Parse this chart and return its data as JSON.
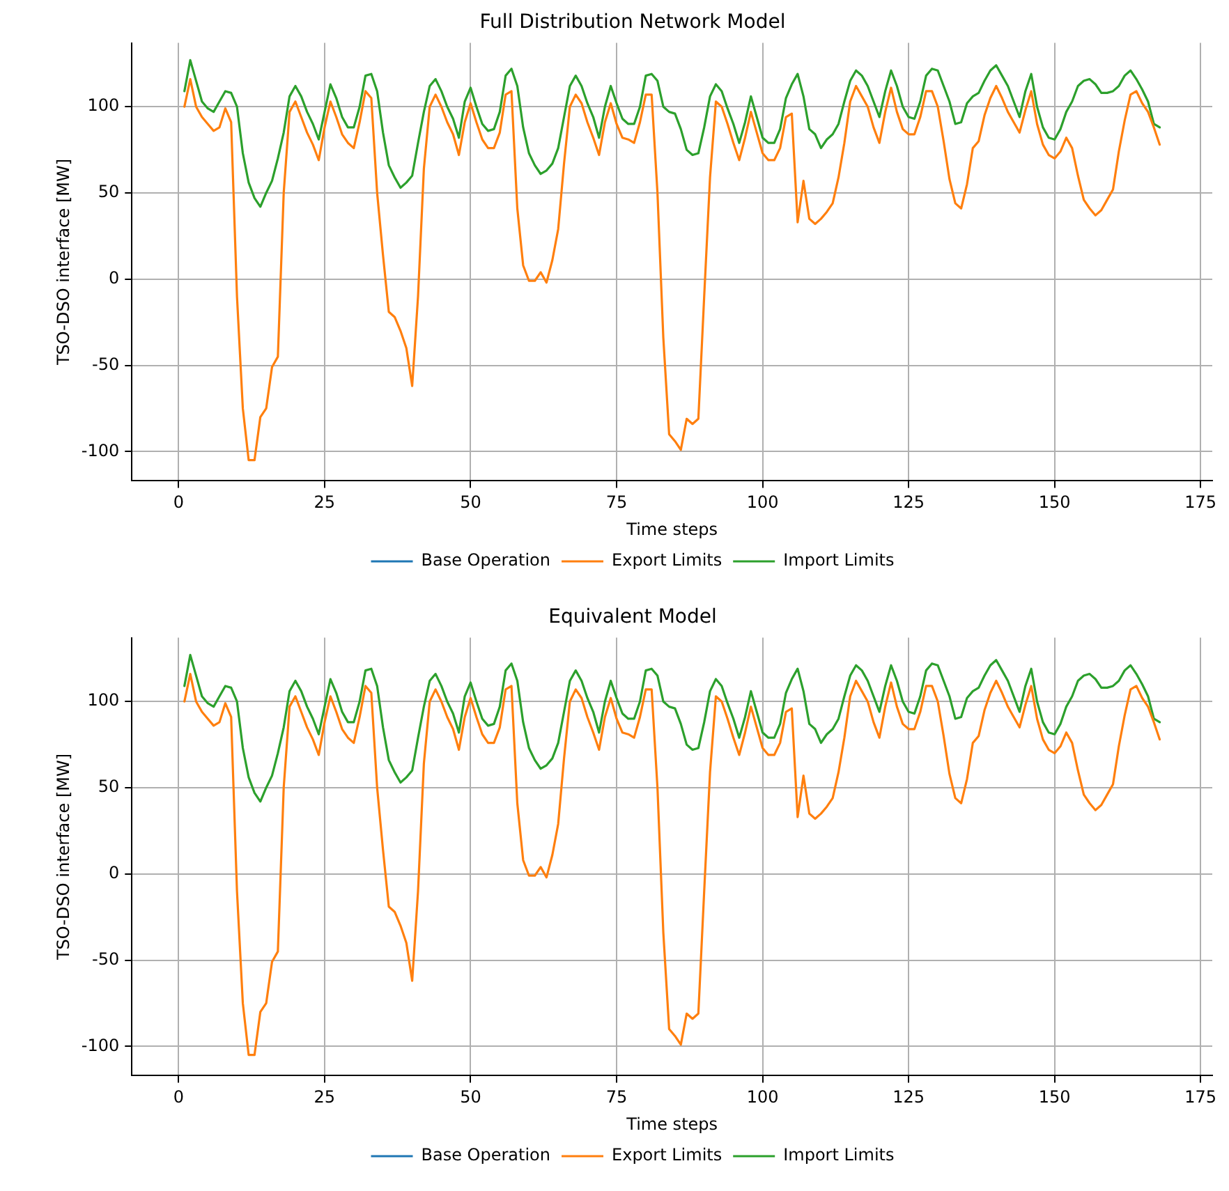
{
  "chart_data": [
    {
      "type": "line",
      "title": "Full Distribution Network Model",
      "xlabel": "Time steps",
      "ylabel": "TSO-DSO interface [MW]",
      "x": [
        1,
        2,
        3,
        4,
        5,
        6,
        7,
        8,
        9,
        10,
        11,
        12,
        13,
        14,
        15,
        16,
        17,
        18,
        19,
        20,
        21,
        22,
        23,
        24,
        25,
        26,
        27,
        28,
        29,
        30,
        31,
        32,
        33,
        34,
        35,
        36,
        37,
        38,
        39,
        40,
        41,
        42,
        43,
        44,
        45,
        46,
        47,
        48,
        49,
        50,
        51,
        52,
        53,
        54,
        55,
        56,
        57,
        58,
        59,
        60,
        61,
        62,
        63,
        64,
        65,
        66,
        67,
        68,
        69,
        70,
        71,
        72,
        73,
        74,
        75,
        76,
        77,
        78,
        79,
        80,
        81,
        82,
        83,
        84,
        85,
        86,
        87,
        88,
        89,
        90,
        91,
        92,
        93,
        94,
        95,
        96,
        97,
        98,
        99,
        100,
        101,
        102,
        103,
        104,
        105,
        106,
        107,
        108,
        109,
        110,
        111,
        112,
        113,
        114,
        115,
        116,
        117,
        118,
        119,
        120,
        121,
        122,
        123,
        124,
        125,
        126,
        127,
        128,
        129,
        130,
        131,
        132,
        133,
        134,
        135,
        136,
        137,
        138,
        139,
        140,
        141,
        142,
        143,
        144,
        145,
        146,
        147,
        148,
        149,
        150,
        151,
        152,
        153,
        154,
        155,
        156,
        157,
        158,
        159,
        160,
        161,
        162,
        163,
        164,
        165,
        166,
        167,
        168
      ],
      "series": [
        {
          "name": "Base Operation",
          "color": "#1f77b4",
          "values": [
            null,
            null,
            null,
            null,
            null,
            null,
            null,
            null,
            null,
            null,
            null,
            null,
            null,
            null,
            null,
            null,
            null,
            null,
            null,
            null,
            null,
            null,
            null,
            null,
            null,
            null,
            null,
            null,
            null,
            null,
            null,
            null,
            null,
            null,
            null,
            null,
            null,
            null,
            null,
            null,
            null,
            null,
            null,
            null,
            null,
            null,
            null,
            null,
            null,
            null,
            null,
            null,
            null,
            null,
            null,
            null,
            null,
            null,
            null,
            null,
            null,
            null,
            null,
            null,
            null,
            null,
            null,
            null,
            null,
            null,
            null,
            null,
            null,
            null,
            null,
            null,
            null,
            null,
            null,
            null,
            null,
            null,
            null,
            null,
            null,
            null,
            null,
            null,
            null,
            null,
            null,
            null,
            null,
            null,
            null,
            null,
            null,
            null,
            null,
            null,
            null,
            null,
            null,
            null,
            null,
            null,
            null,
            null,
            null,
            null,
            null,
            null,
            null,
            null,
            null,
            null,
            null,
            null,
            null,
            null,
            null,
            null,
            null,
            null,
            null,
            null,
            null,
            null,
            null,
            null,
            null,
            null,
            null,
            null,
            null,
            null,
            null,
            null,
            null,
            null,
            null,
            null,
            null,
            null,
            null,
            null,
            null,
            null,
            null,
            null,
            null,
            null,
            null,
            null,
            null,
            null,
            null,
            null,
            null,
            null,
            null,
            null,
            null,
            null,
            null,
            null,
            null,
            null
          ]
        },
        {
          "name": "Export Limits",
          "color": "#ff7f0e",
          "values": [
            100,
            116,
            100,
            94,
            90,
            86,
            88,
            99,
            91,
            -10,
            -75,
            -105,
            -105,
            -80,
            -75,
            -51,
            -45,
            50,
            97,
            103,
            94,
            85,
            78,
            69,
            88,
            103,
            94,
            84,
            79,
            76,
            91,
            109,
            105,
            50,
            14,
            -19,
            -22,
            -30,
            -40,
            -62,
            -10,
            64,
            100,
            107,
            100,
            91,
            84,
            72,
            91,
            102,
            91,
            81,
            76,
            76,
            85,
            107,
            109,
            41,
            8,
            -1,
            -1,
            4,
            -2,
            11,
            29,
            67,
            100,
            107,
            102,
            91,
            82,
            72,
            91,
            102,
            90,
            82,
            81,
            79,
            91,
            107,
            107,
            50,
            -34,
            -90,
            -94,
            -99,
            -81,
            -84,
            -81,
            -10,
            59,
            103,
            100,
            90,
            79,
            69,
            82,
            97,
            85,
            73,
            69,
            69,
            76,
            94,
            96,
            33,
            57,
            35,
            32,
            35,
            39,
            44,
            59,
            79,
            103,
            112,
            106,
            100,
            88,
            79,
            97,
            111,
            97,
            87,
            84,
            84,
            94,
            109,
            109,
            100,
            80,
            58,
            44,
            41,
            55,
            76,
            80,
            95,
            105,
            112,
            105,
            97,
            91,
            85,
            98,
            109,
            90,
            78,
            72,
            70,
            74,
            82,
            76,
            60,
            46,
            41,
            37,
            40,
            46,
            52,
            74,
            92,
            107,
            109,
            102,
            97,
            88,
            78
          ]
        },
        {
          "name": "Import Limits",
          "color": "#2ca02c",
          "values": [
            109,
            127,
            115,
            103,
            99,
            97,
            103,
            109,
            108,
            100,
            73,
            56,
            47,
            42,
            50,
            57,
            70,
            85,
            106,
            112,
            106,
            97,
            90,
            81,
            97,
            113,
            105,
            94,
            88,
            88,
            100,
            118,
            119,
            109,
            85,
            66,
            59,
            53,
            56,
            60,
            79,
            97,
            112,
            116,
            109,
            100,
            93,
            82,
            103,
            111,
            100,
            90,
            86,
            87,
            97,
            118,
            122,
            112,
            88,
            73,
            66,
            61,
            63,
            67,
            76,
            94,
            112,
            118,
            112,
            102,
            94,
            82,
            100,
            112,
            102,
            93,
            90,
            90,
            100,
            118,
            119,
            115,
            100,
            97,
            96,
            87,
            75,
            72,
            73,
            88,
            106,
            113,
            109,
            99,
            90,
            79,
            91,
            106,
            94,
            82,
            79,
            79,
            87,
            105,
            113,
            119,
            106,
            87,
            84,
            76,
            81,
            84,
            90,
            103,
            115,
            121,
            118,
            112,
            103,
            94,
            109,
            121,
            112,
            100,
            94,
            93,
            103,
            118,
            122,
            121,
            112,
            103,
            90,
            91,
            102,
            106,
            108,
            115,
            121,
            124,
            118,
            112,
            103,
            94,
            109,
            119,
            100,
            88,
            82,
            81,
            87,
            97,
            103,
            112,
            115,
            116,
            113,
            108,
            108,
            109,
            112,
            118,
            121,
            116,
            110,
            103,
            90,
            88
          ]
        }
      ],
      "xlim": [
        -8,
        177
      ],
      "ylim": [
        -117,
        137
      ],
      "xticks": [
        0,
        25,
        50,
        75,
        100,
        125,
        150,
        175
      ],
      "yticks": [
        -100,
        -50,
        0,
        50,
        100
      ],
      "grid": true,
      "legend": "bottom",
      "line_style": "solid",
      "marker": "none"
    },
    {
      "type": "line",
      "title": "Equivalent Model",
      "xlabel": "Time steps",
      "ylabel": "TSO-DSO interface [MW]",
      "x": [
        1,
        2,
        3,
        4,
        5,
        6,
        7,
        8,
        9,
        10,
        11,
        12,
        13,
        14,
        15,
        16,
        17,
        18,
        19,
        20,
        21,
        22,
        23,
        24,
        25,
        26,
        27,
        28,
        29,
        30,
        31,
        32,
        33,
        34,
        35,
        36,
        37,
        38,
        39,
        40,
        41,
        42,
        43,
        44,
        45,
        46,
        47,
        48,
        49,
        50,
        51,
        52,
        53,
        54,
        55,
        56,
        57,
        58,
        59,
        60,
        61,
        62,
        63,
        64,
        65,
        66,
        67,
        68,
        69,
        70,
        71,
        72,
        73,
        74,
        75,
        76,
        77,
        78,
        79,
        80,
        81,
        82,
        83,
        84,
        85,
        86,
        87,
        88,
        89,
        90,
        91,
        92,
        93,
        94,
        95,
        96,
        97,
        98,
        99,
        100,
        101,
        102,
        103,
        104,
        105,
        106,
        107,
        108,
        109,
        110,
        111,
        112,
        113,
        114,
        115,
        116,
        117,
        118,
        119,
        120,
        121,
        122,
        123,
        124,
        125,
        126,
        127,
        128,
        129,
        130,
        131,
        132,
        133,
        134,
        135,
        136,
        137,
        138,
        139,
        140,
        141,
        142,
        143,
        144,
        145,
        146,
        147,
        148,
        149,
        150,
        151,
        152,
        153,
        154,
        155,
        156,
        157,
        158,
        159,
        160,
        161,
        162,
        163,
        164,
        165,
        166,
        167,
        168
      ],
      "series": [
        {
          "name": "Base Operation",
          "color": "#1f77b4",
          "values": [
            null,
            null,
            null,
            null,
            null,
            null,
            null,
            null,
            null,
            null,
            null,
            null,
            null,
            null,
            null,
            null,
            null,
            null,
            null,
            null,
            null,
            null,
            null,
            null,
            null,
            null,
            null,
            null,
            null,
            null,
            null,
            null,
            null,
            null,
            null,
            null,
            null,
            null,
            null,
            null,
            null,
            null,
            null,
            null,
            null,
            null,
            null,
            null,
            null,
            null,
            null,
            null,
            null,
            null,
            null,
            null,
            null,
            null,
            null,
            null,
            null,
            null,
            null,
            null,
            null,
            null,
            null,
            null,
            null,
            null,
            null,
            null,
            null,
            null,
            null,
            null,
            null,
            null,
            null,
            null,
            null,
            null,
            null,
            null,
            null,
            null,
            null,
            null,
            null,
            null,
            null,
            null,
            null,
            null,
            null,
            null,
            null,
            null,
            null,
            null,
            null,
            null,
            null,
            null,
            null,
            null,
            null,
            null,
            null,
            null,
            null,
            null,
            null,
            null,
            null,
            null,
            null,
            null,
            null,
            null,
            null,
            null,
            null,
            null,
            null,
            null,
            null,
            null,
            null,
            null,
            null,
            null,
            null,
            null,
            null,
            null,
            null,
            null,
            null,
            null,
            null,
            null,
            null,
            null,
            null,
            null,
            null,
            null,
            null,
            null,
            null,
            null,
            null,
            null,
            null,
            null,
            null,
            null,
            null,
            null,
            null,
            null,
            null,
            null,
            null,
            null,
            null,
            null
          ]
        },
        {
          "name": "Export Limits",
          "color": "#ff7f0e",
          "values": [
            100,
            116,
            100,
            94,
            90,
            86,
            88,
            99,
            91,
            -10,
            -75,
            -105,
            -105,
            -80,
            -75,
            -51,
            -45,
            50,
            97,
            103,
            94,
            85,
            78,
            69,
            88,
            103,
            94,
            84,
            79,
            76,
            91,
            109,
            105,
            50,
            14,
            -19,
            -22,
            -30,
            -40,
            -62,
            -10,
            64,
            100,
            107,
            100,
            91,
            84,
            72,
            91,
            102,
            91,
            81,
            76,
            76,
            85,
            107,
            109,
            41,
            8,
            -1,
            -1,
            4,
            -2,
            11,
            29,
            67,
            100,
            107,
            102,
            91,
            82,
            72,
            91,
            102,
            90,
            82,
            81,
            79,
            91,
            107,
            107,
            50,
            -34,
            -90,
            -94,
            -99,
            -81,
            -84,
            -81,
            -10,
            59,
            103,
            100,
            90,
            79,
            69,
            82,
            97,
            85,
            73,
            69,
            69,
            76,
            94,
            96,
            33,
            57,
            35,
            32,
            35,
            39,
            44,
            59,
            79,
            103,
            112,
            106,
            100,
            88,
            79,
            97,
            111,
            97,
            87,
            84,
            84,
            94,
            109,
            109,
            100,
            80,
            58,
            44,
            41,
            55,
            76,
            80,
            95,
            105,
            112,
            105,
            97,
            91,
            85,
            98,
            109,
            90,
            78,
            72,
            70,
            74,
            82,
            76,
            60,
            46,
            41,
            37,
            40,
            46,
            52,
            74,
            92,
            107,
            109,
            102,
            97,
            88,
            78
          ]
        },
        {
          "name": "Import Limits",
          "color": "#2ca02c",
          "values": [
            109,
            127,
            115,
            103,
            99,
            97,
            103,
            109,
            108,
            100,
            73,
            56,
            47,
            42,
            50,
            57,
            70,
            85,
            106,
            112,
            106,
            97,
            90,
            81,
            97,
            113,
            105,
            94,
            88,
            88,
            100,
            118,
            119,
            109,
            85,
            66,
            59,
            53,
            56,
            60,
            79,
            97,
            112,
            116,
            109,
            100,
            93,
            82,
            103,
            111,
            100,
            90,
            86,
            87,
            97,
            118,
            122,
            112,
            88,
            73,
            66,
            61,
            63,
            67,
            76,
            94,
            112,
            118,
            112,
            102,
            94,
            82,
            100,
            112,
            102,
            93,
            90,
            90,
            100,
            118,
            119,
            115,
            100,
            97,
            96,
            87,
            75,
            72,
            73,
            88,
            106,
            113,
            109,
            99,
            90,
            79,
            91,
            106,
            94,
            82,
            79,
            79,
            87,
            105,
            113,
            119,
            106,
            87,
            84,
            76,
            81,
            84,
            90,
            103,
            115,
            121,
            118,
            112,
            103,
            94,
            109,
            121,
            112,
            100,
            94,
            93,
            103,
            118,
            122,
            121,
            112,
            103,
            90,
            91,
            102,
            106,
            108,
            115,
            121,
            124,
            118,
            112,
            103,
            94,
            109,
            119,
            100,
            88,
            82,
            81,
            87,
            97,
            103,
            112,
            115,
            116,
            113,
            108,
            108,
            109,
            112,
            118,
            121,
            116,
            110,
            103,
            90,
            88
          ]
        }
      ],
      "xlim": [
        -8,
        177
      ],
      "ylim": [
        -117,
        137
      ],
      "xticks": [
        0,
        25,
        50,
        75,
        100,
        125,
        150,
        175
      ],
      "yticks": [
        -100,
        -50,
        0,
        50,
        100
      ],
      "grid": true,
      "legend": "bottom",
      "line_style": "solid",
      "marker": "none"
    }
  ]
}
